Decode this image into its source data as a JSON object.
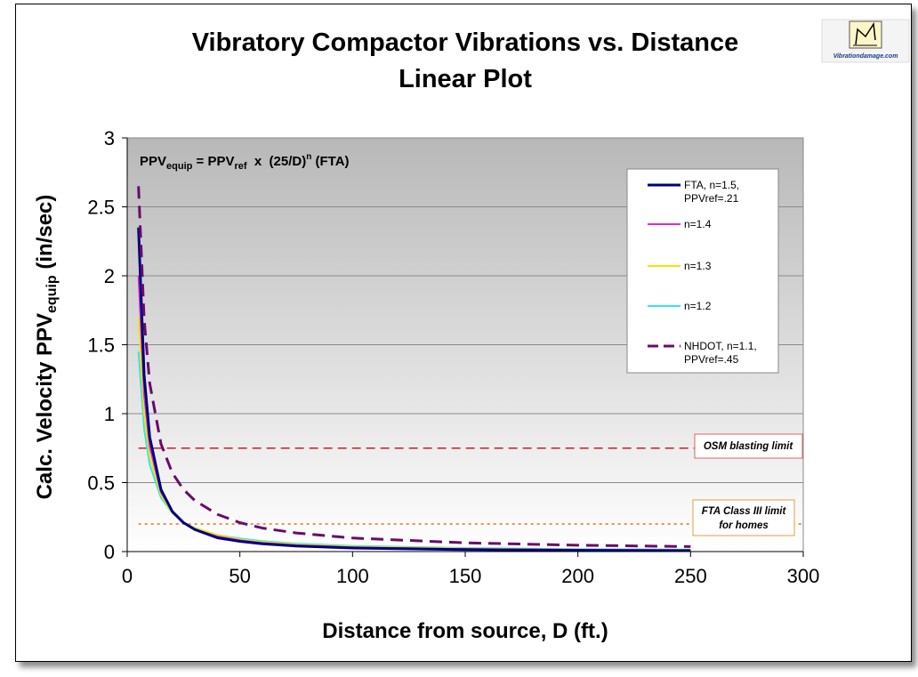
{
  "chart_data": {
    "type": "line",
    "title": "Vibratory Compactor Vibrations vs. Distance",
    "subtitle": "Linear Plot",
    "xlabel": "Distance from source, D (ft.)",
    "ylabel": {
      "main": "Calc. Velocity PPV",
      "sub": "equip",
      "unit": " (in/sec)"
    },
    "xlim": [
      0,
      300
    ],
    "ylim": [
      0,
      3
    ],
    "xticks": [
      "0",
      "50",
      "100",
      "150",
      "200",
      "250",
      "300"
    ],
    "yticks": [
      "0",
      "0.5",
      "1",
      "1.5",
      "2",
      "2.5",
      "3"
    ],
    "grid": "horizontal",
    "plot_background": "gray-gradient",
    "formula": {
      "a": "PPV",
      "a_sub": "equip",
      "eq": " = PPV",
      "b_sub": "ref",
      "mid": "  x  (25/D)",
      "exp": "n",
      "tail": " (FTA)"
    },
    "x": [
      5,
      7.5,
      10,
      15,
      20,
      25,
      30,
      40,
      50,
      60,
      75,
      100,
      150,
      200,
      250
    ],
    "series": [
      {
        "name": "FTA, n=1.5, PPVref=.21",
        "color": "#000080",
        "style": "solid",
        "width": 3,
        "values": [
          2.35,
          1.28,
          0.83,
          0.45,
          0.29,
          0.21,
          0.16,
          0.1,
          0.074,
          0.056,
          0.04,
          0.026,
          0.014,
          0.009,
          0.007
        ]
      },
      {
        "name": "n=1.4",
        "color": "#d92ad9",
        "style": "solid",
        "width": 2,
        "values": [
          2.0,
          1.14,
          0.76,
          0.43,
          0.29,
          0.21,
          0.16,
          0.11,
          0.081,
          0.063,
          0.046,
          0.031,
          0.018,
          0.012,
          0.009
        ]
      },
      {
        "name": "n=1.3",
        "color": "#f2e600",
        "style": "solid",
        "width": 2,
        "values": [
          1.7,
          1.0,
          0.69,
          0.41,
          0.28,
          0.21,
          0.17,
          0.12,
          0.088,
          0.069,
          0.052,
          0.036,
          0.022,
          0.015,
          0.011
        ]
      },
      {
        "name": "n=1.2",
        "color": "#33e6e6",
        "style": "solid",
        "width": 2,
        "values": [
          1.45,
          0.89,
          0.63,
          0.39,
          0.28,
          0.21,
          0.17,
          0.12,
          0.095,
          0.076,
          0.058,
          0.041,
          0.026,
          0.018,
          0.014
        ]
      },
      {
        "name": "NHDOT, n=1.1, PPVref=.45",
        "color": "#6a0a6a",
        "style": "dashed",
        "width": 3,
        "values": [
          2.65,
          1.69,
          1.22,
          0.78,
          0.57,
          0.45,
          0.37,
          0.27,
          0.21,
          0.17,
          0.135,
          0.098,
          0.063,
          0.046,
          0.036
        ]
      }
    ],
    "legend": {
      "placement": "top-right, inside plot"
    },
    "reference_lines": [
      {
        "label": "OSM blasting limit",
        "y": 0.75,
        "color": "#c81e1e",
        "style": "dashed"
      },
      {
        "label_lines": [
          "FTA Class III limit",
          "for homes"
        ],
        "y": 0.2,
        "color": "#e07a10",
        "style": "dotted"
      }
    ]
  },
  "logo": {
    "text": "Vibrationdamage.com"
  }
}
